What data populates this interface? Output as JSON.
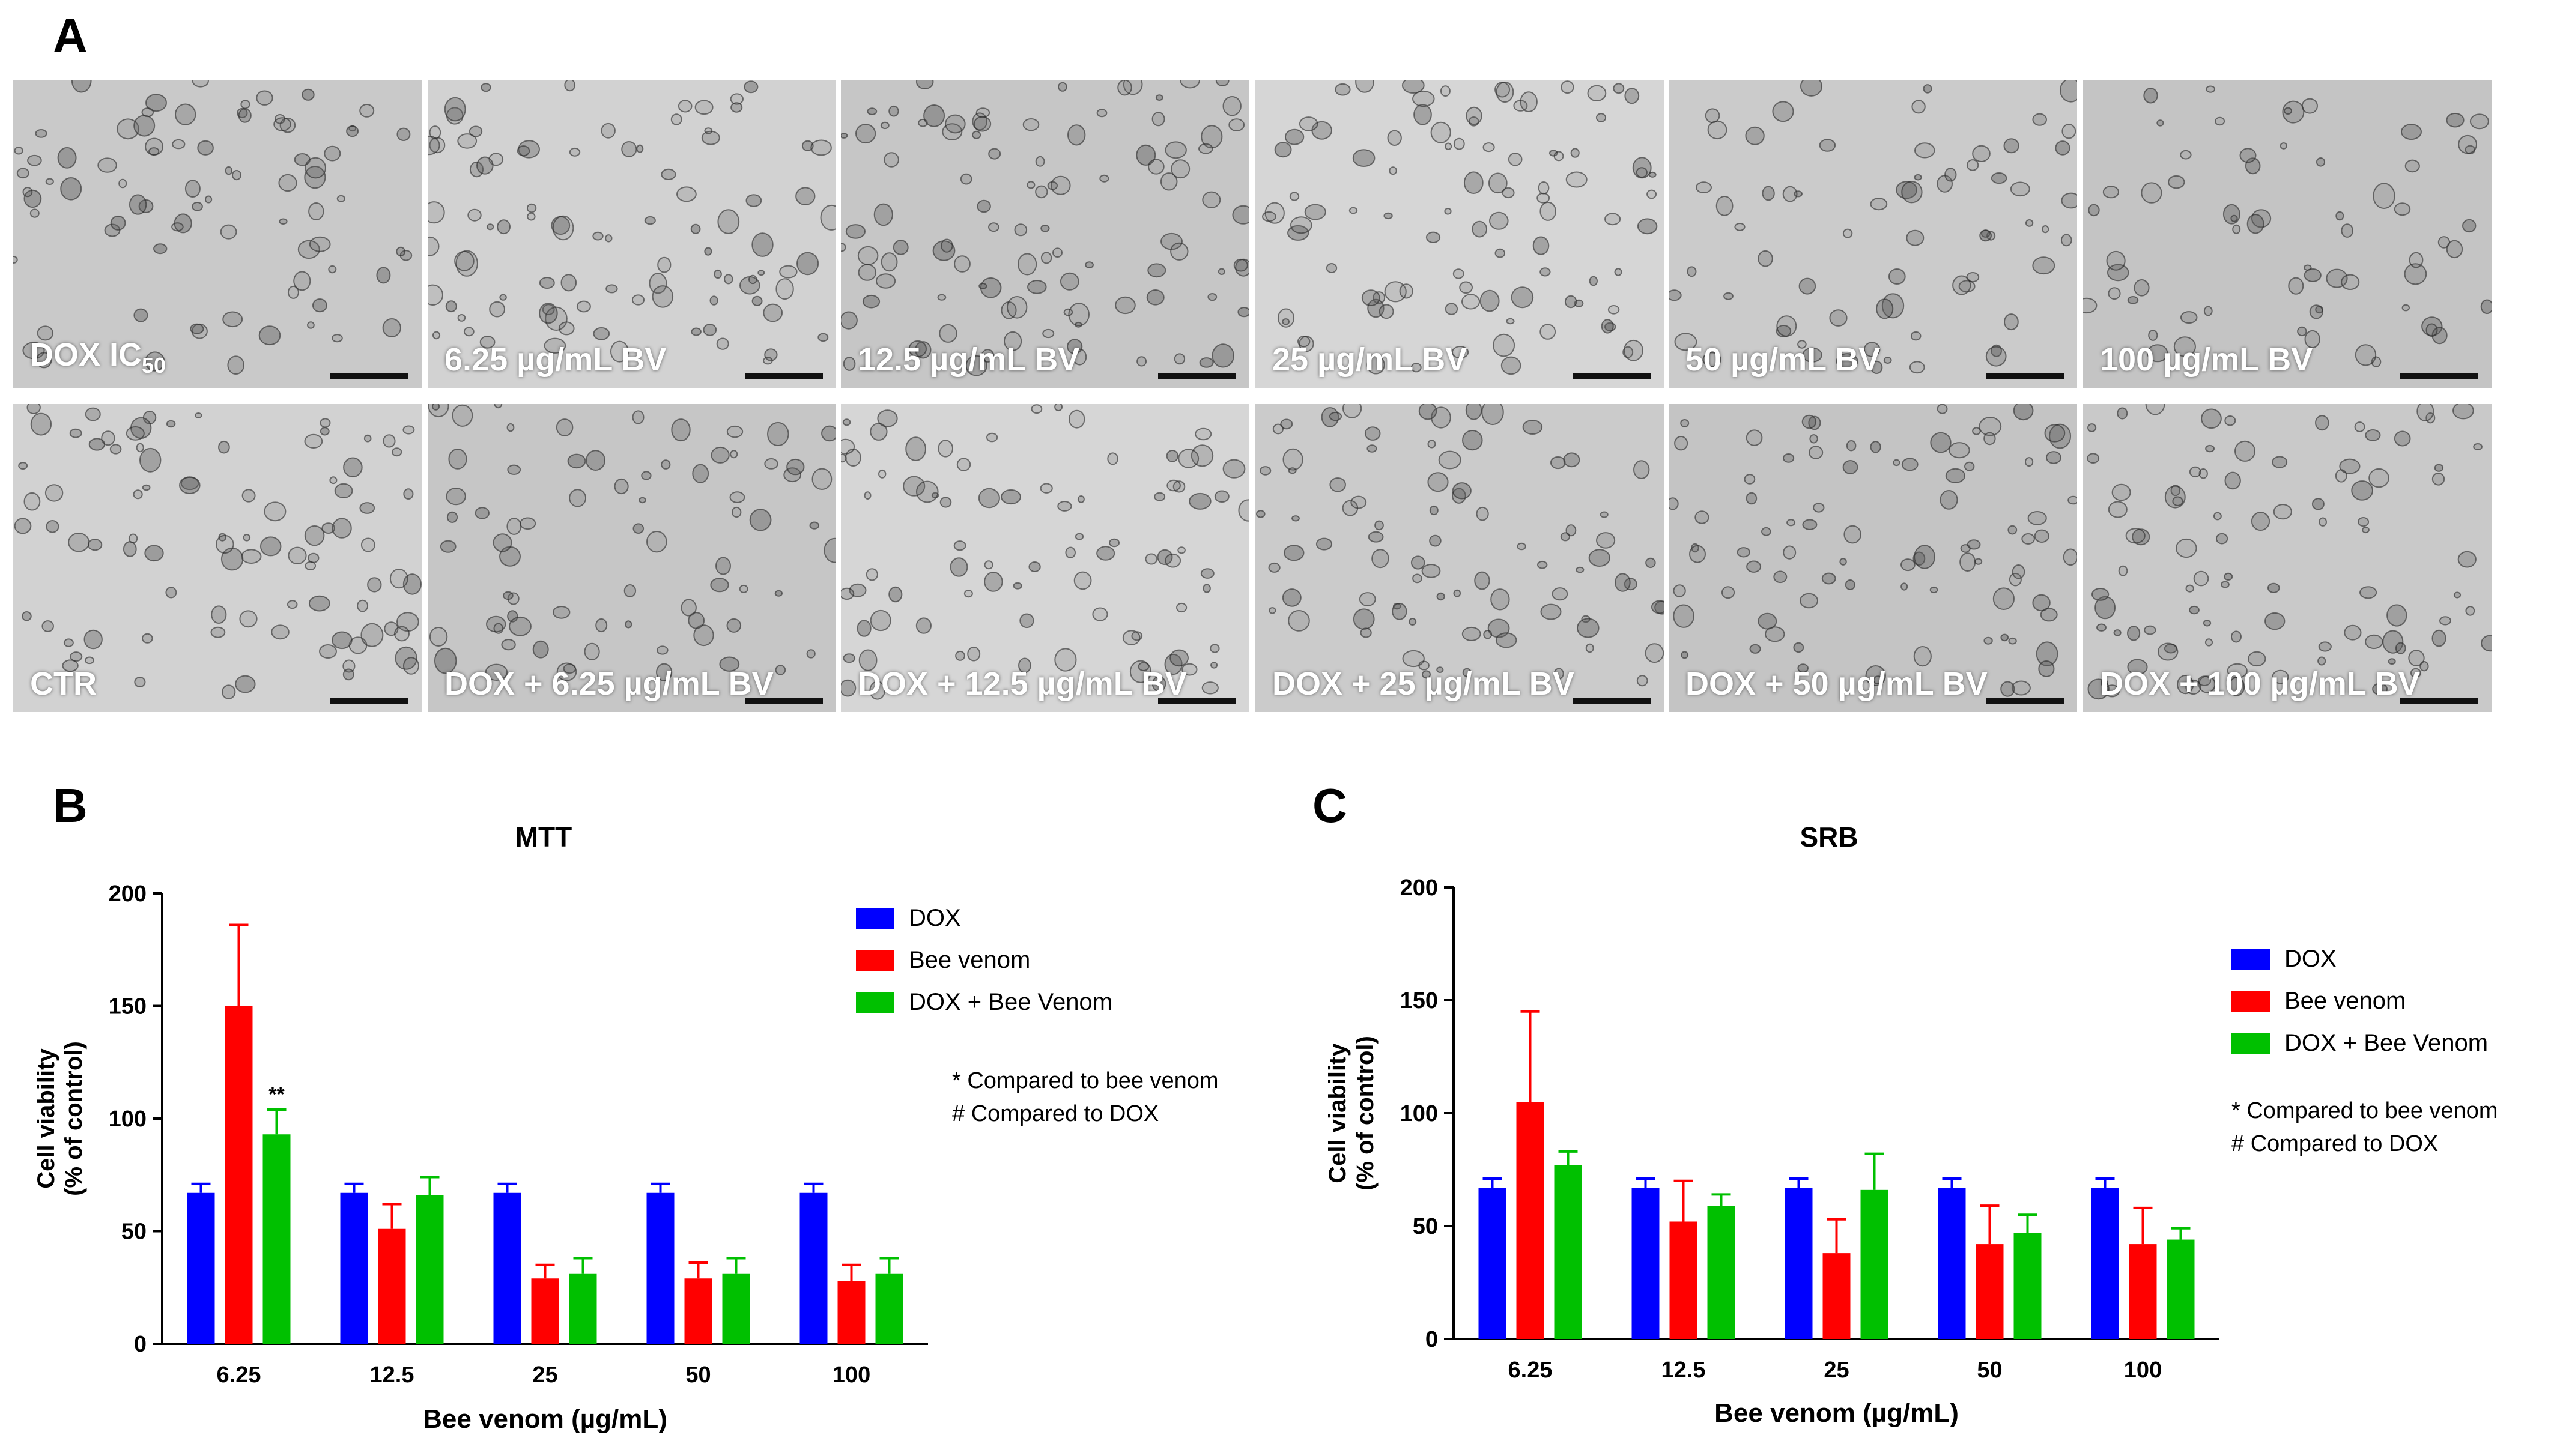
{
  "panel_labels": {
    "a": "A",
    "b": "B",
    "c": "C"
  },
  "micrographs": {
    "top_row": [
      {
        "label_main": "DOX IC",
        "label_sub": "50"
      },
      {
        "label_main": "6.25 µg/mL BV",
        "label_sub": ""
      },
      {
        "label_main": "12.5 µg/mL BV",
        "label_sub": ""
      },
      {
        "label_main": "25 µg/mL BV",
        "label_sub": ""
      },
      {
        "label_main": "50 µg/mL BV",
        "label_sub": ""
      },
      {
        "label_main": "100 µg/mL BV",
        "label_sub": ""
      }
    ],
    "bottom_row": [
      {
        "label_main": "CTR",
        "label_sub": ""
      },
      {
        "label_main": "DOX + 6.25 µg/mL BV",
        "label_sub": ""
      },
      {
        "label_main": "DOX + 12.5 µg/mL BV",
        "label_sub": ""
      },
      {
        "label_main": "DOX + 25 µg/mL BV",
        "label_sub": ""
      },
      {
        "label_main": "DOX + 50 µg/mL BV",
        "label_sub": ""
      },
      {
        "label_main": "DOX + 100 µg/mL BV",
        "label_sub": ""
      }
    ]
  },
  "chart_data": [
    {
      "id": "mtt",
      "type": "bar",
      "title": "MTT",
      "xlabel": "Bee venom (µg/mL)",
      "ylabel_line1": "Cell viability",
      "ylabel_line2": "(% of control)",
      "ylim": [
        0,
        200
      ],
      "yticks": [
        0,
        50,
        100,
        150,
        200
      ],
      "categories": [
        "6.25",
        "12.5",
        "25",
        "50",
        "100"
      ],
      "legend_position": "right",
      "series": [
        {
          "name": "DOX",
          "color": "#0000ff",
          "values": [
            67,
            67,
            67,
            67,
            67
          ],
          "errors": [
            4,
            4,
            4,
            4,
            4
          ]
        },
        {
          "name": "Bee venom",
          "color": "#ff0000",
          "values": [
            150,
            51,
            29,
            29,
            28
          ],
          "errors": [
            36,
            11,
            6,
            7,
            7
          ]
        },
        {
          "name": "DOX + Bee Venom",
          "color": "#00c000",
          "values": [
            93,
            66,
            31,
            31,
            31
          ],
          "errors": [
            11,
            8,
            7,
            7,
            7
          ]
        }
      ],
      "annotations": [
        {
          "text": "**",
          "category": "6.25",
          "series": "DOX + Bee Venom"
        }
      ],
      "notes": [
        "* Compared to bee venom",
        "# Compared to DOX"
      ]
    },
    {
      "id": "srb",
      "type": "bar",
      "title": "SRB",
      "xlabel": "Bee venom (µg/mL)",
      "ylabel_line1": "Cell viability",
      "ylabel_line2": "(% of control)",
      "ylim": [
        0,
        200
      ],
      "yticks": [
        0,
        50,
        100,
        150,
        200
      ],
      "categories": [
        "6.25",
        "12.5",
        "25",
        "50",
        "100"
      ],
      "legend_position": "right",
      "series": [
        {
          "name": "DOX",
          "color": "#0000ff",
          "values": [
            67,
            67,
            67,
            67,
            67
          ],
          "errors": [
            4,
            4,
            4,
            4,
            4
          ]
        },
        {
          "name": "Bee venom",
          "color": "#ff0000",
          "values": [
            105,
            52,
            38,
            42,
            42
          ],
          "errors": [
            40,
            18,
            15,
            17,
            16
          ]
        },
        {
          "name": "DOX + Bee Venom",
          "color": "#00c000",
          "values": [
            77,
            59,
            66,
            47,
            44
          ],
          "errors": [
            6,
            5,
            16,
            8,
            5
          ]
        }
      ],
      "annotations": [],
      "notes": [
        "* Compared to bee venom",
        "# Compared to DOX"
      ]
    }
  ]
}
